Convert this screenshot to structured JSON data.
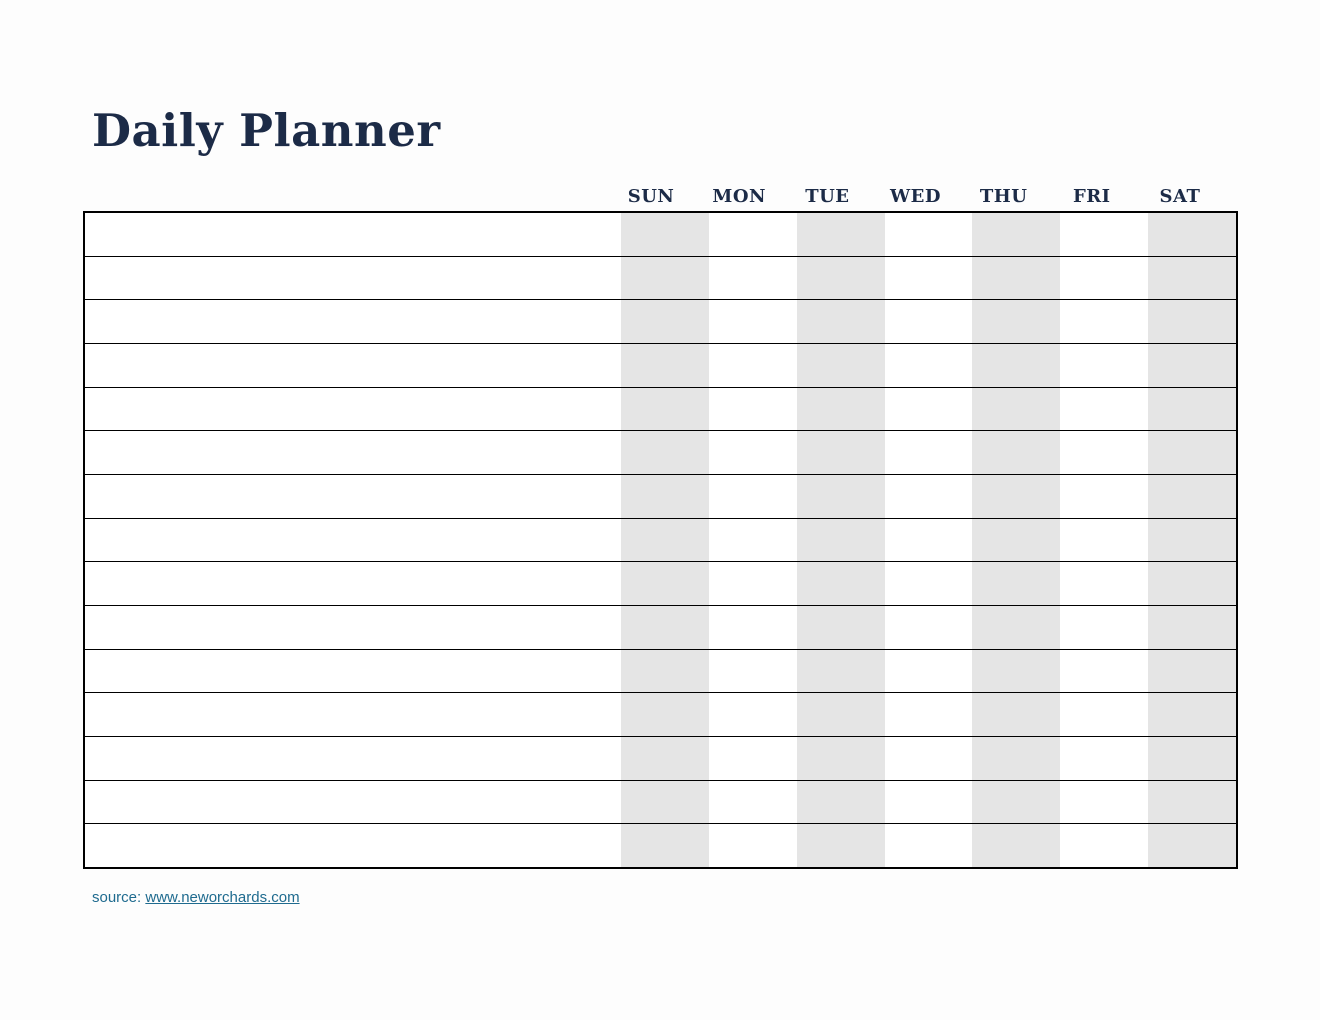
{
  "page": {
    "title": "Daily Planner"
  },
  "planner": {
    "days": [
      {
        "label": "SUN",
        "shaded": true
      },
      {
        "label": "MON",
        "shaded": false
      },
      {
        "label": "TUE",
        "shaded": true
      },
      {
        "label": "WED",
        "shaded": false
      },
      {
        "label": "THU",
        "shaded": true
      },
      {
        "label": "FRI",
        "shaded": false
      },
      {
        "label": "SAT",
        "shaded": true
      }
    ],
    "row_count": 15
  },
  "footer": {
    "source_label": "source: ",
    "source_link": "www.neworchards.com"
  },
  "colors": {
    "navy": "#1c2b47",
    "stripe": "#e5e5e5",
    "link": "#1f6b8f",
    "border": "#000000",
    "background": "#fdfdfd"
  }
}
